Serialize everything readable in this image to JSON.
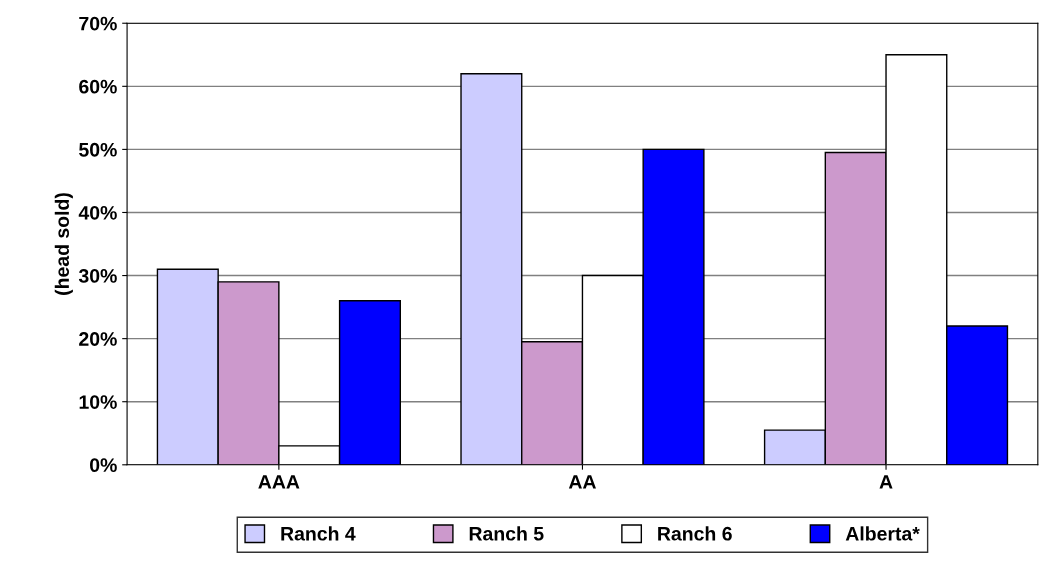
{
  "chart_data": {
    "type": "bar",
    "ylabel": "(head sold)",
    "categories": [
      "AAA",
      "AA",
      "A"
    ],
    "series": [
      {
        "name": "Ranch 4",
        "color": "#ccccff",
        "values": [
          31,
          62,
          5.5
        ]
      },
      {
        "name": "Ranch 5",
        "color": "#cc99cc",
        "values": [
          29,
          19.5,
          49.5
        ]
      },
      {
        "name": "Ranch 6",
        "color": "#ffffff",
        "values": [
          3,
          30,
          65
        ]
      },
      {
        "name": "Alberta*",
        "color": "#0000ff",
        "values": [
          26,
          50,
          22
        ]
      }
    ],
    "ylim": [
      0,
      70
    ],
    "yticks": [
      {
        "value": 0,
        "label": "0%"
      },
      {
        "value": 10,
        "label": "10%"
      },
      {
        "value": 20,
        "label": "20%"
      },
      {
        "value": 30,
        "label": "30%"
      },
      {
        "value": 40,
        "label": "40%"
      },
      {
        "value": 50,
        "label": "50%"
      },
      {
        "value": 60,
        "label": "60%"
      },
      {
        "value": 70,
        "label": "70%"
      }
    ],
    "grid": "y",
    "legend": "bottom"
  }
}
